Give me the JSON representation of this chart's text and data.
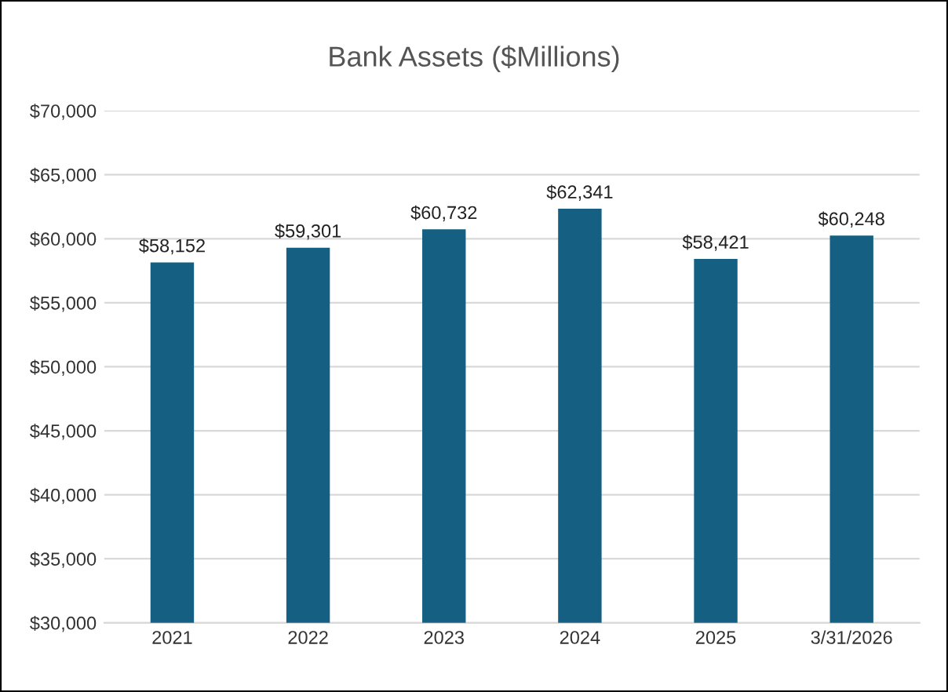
{
  "chart_data": {
    "type": "bar",
    "title": "Bank Assets ($Millions)",
    "categories": [
      "2021",
      "2022",
      "2023",
      "2024",
      "2025",
      "3/31/2026"
    ],
    "values": [
      58152,
      59301,
      60732,
      62341,
      58421,
      60248
    ],
    "value_labels": [
      "$58,152",
      "$59,301",
      "$60,732",
      "$62,341",
      "$58,421",
      "$60,248"
    ],
    "color": "#155f82",
    "ylim": [
      30000,
      70000
    ],
    "yticks": [
      {
        "value": 30000,
        "label": "$30,000"
      },
      {
        "value": 35000,
        "label": "$35,000"
      },
      {
        "value": 40000,
        "label": "$40,000"
      },
      {
        "value": 45000,
        "label": "$45,000"
      },
      {
        "value": 50000,
        "label": "$50,000"
      },
      {
        "value": 55000,
        "label": "$55,000"
      },
      {
        "value": 60000,
        "label": "$60,000"
      },
      {
        "value": 65000,
        "label": "$65,000"
      },
      {
        "value": 70000,
        "label": "$70,000"
      }
    ],
    "grid": "y"
  }
}
